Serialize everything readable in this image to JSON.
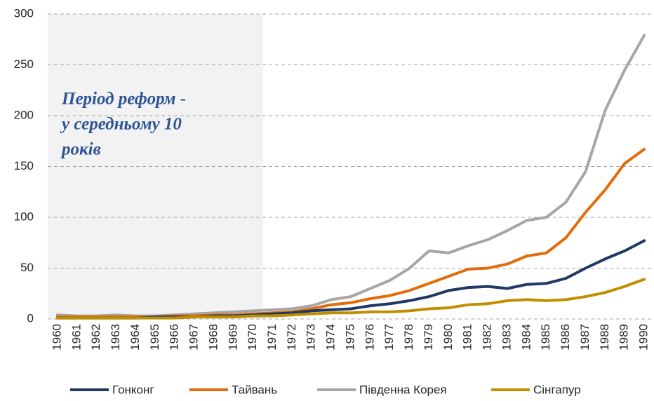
{
  "chart_data": {
    "type": "line",
    "annotation": [
      "Період реформ -",
      "у середньому 10",
      "років"
    ],
    "categories": [
      "1960",
      "1961",
      "1962",
      "1963",
      "1964",
      "1965",
      "1966",
      "1967",
      "1968",
      "1969",
      "1970",
      "1971",
      "1972",
      "1973",
      "1974",
      "1975",
      "1976",
      "1977",
      "1978",
      "1979",
      "1980",
      "1981",
      "1982",
      "1983",
      "1984",
      "1985",
      "1986",
      "1987",
      "1988",
      "1989",
      "1990"
    ],
    "series": [
      {
        "name": "Гонконг",
        "color": "#1f3864",
        "values": [
          1,
          1,
          1,
          1,
          1,
          2,
          2,
          2,
          3,
          3,
          4,
          5,
          6,
          8,
          9,
          10,
          13,
          15,
          18,
          22,
          28,
          31,
          32,
          30,
          34,
          35,
          40,
          50,
          59,
          67,
          77
        ]
      },
      {
        "name": "Тайвань",
        "color": "#e36c0a",
        "values": [
          2,
          2,
          2,
          2,
          2,
          2,
          3,
          3,
          4,
          4,
          5,
          6,
          7,
          10,
          14,
          16,
          20,
          23,
          28,
          35,
          42,
          49,
          50,
          54,
          62,
          65,
          80,
          105,
          127,
          153,
          167
        ]
      },
      {
        "name": "Південна Корея",
        "color": "#a6a6a6",
        "values": [
          4,
          3,
          3,
          4,
          3,
          3,
          4,
          5,
          6,
          7,
          8,
          9,
          10,
          13,
          19,
          22,
          30,
          38,
          50,
          67,
          65,
          72,
          78,
          87,
          97,
          100,
          115,
          145,
          205,
          245,
          279
        ]
      },
      {
        "name": "Сінгапур",
        "color": "#bf8f00",
        "values": [
          1,
          1,
          1,
          1,
          1,
          1,
          1,
          2,
          2,
          2,
          3,
          3,
          4,
          5,
          6,
          6,
          7,
          7,
          8,
          10,
          11,
          14,
          15,
          18,
          19,
          18,
          19,
          22,
          26,
          32,
          39
        ]
      }
    ],
    "ylim": [
      0,
      300
    ],
    "yticks": [
      0,
      50,
      100,
      150,
      200,
      250,
      300
    ],
    "grid": true,
    "legend": "bottom"
  }
}
